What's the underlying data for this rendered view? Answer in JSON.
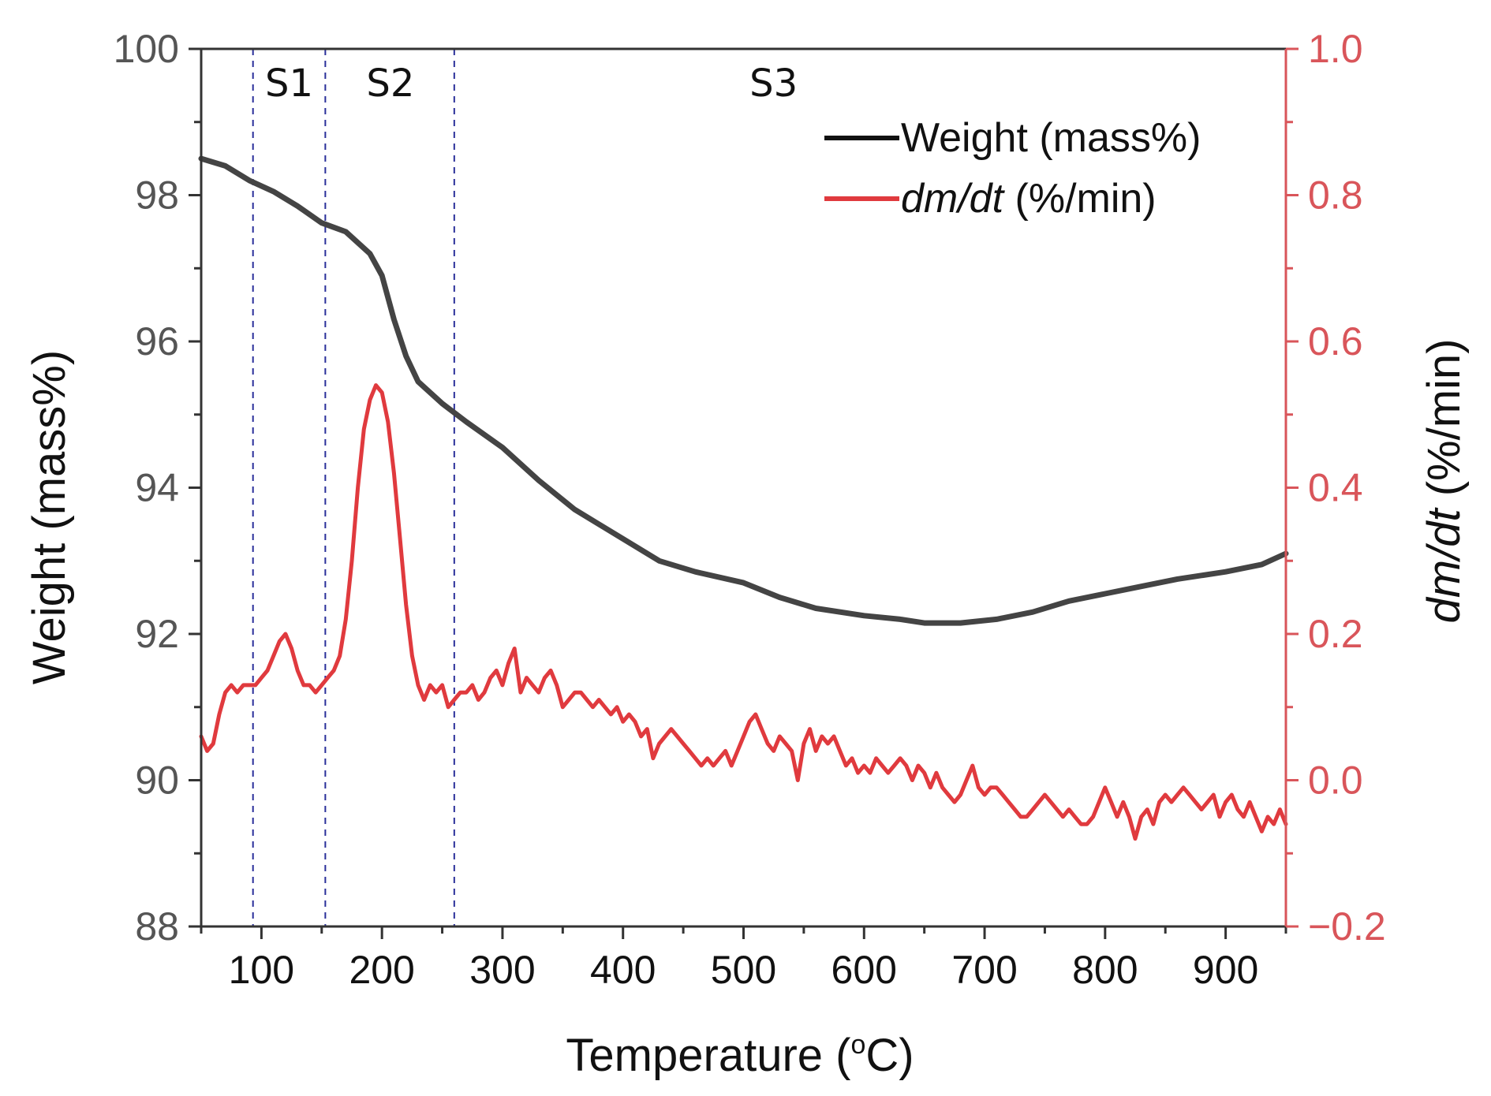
{
  "chart_data": {
    "type": "line",
    "xlabel": "Temperature (°C)",
    "ylabel_left": "Weight (mass%)",
    "ylabel_right_italic": "dm/dt",
    "ylabel_right_rest": " (%/min)",
    "xlim": [
      50,
      950
    ],
    "ylim_left": [
      88,
      100
    ],
    "ylim_right": [
      -0.2,
      1.0
    ],
    "x_ticks": [
      100,
      200,
      300,
      400,
      500,
      600,
      700,
      800,
      900
    ],
    "y_left_ticks": [
      88,
      90,
      92,
      94,
      96,
      98,
      100
    ],
    "y_right_ticks": [
      -0.2,
      0.0,
      0.2,
      0.4,
      0.6,
      0.8,
      1.0
    ],
    "x_tick_labels": [
      "100",
      "200",
      "300",
      "400",
      "500",
      "600",
      "700",
      "800",
      "900"
    ],
    "y_left_tick_labels": [
      "88",
      "90",
      "92",
      "94",
      "96",
      "98",
      "100"
    ],
    "y_right_tick_labels": [
      "−0.2",
      "0.0",
      "0.2",
      "0.4",
      "0.6",
      "0.8",
      "1.0"
    ],
    "stage_lines_x": [
      93,
      153,
      260
    ],
    "stages": [
      {
        "label": "S1",
        "x": 123
      },
      {
        "label": "S2",
        "x": 207
      },
      {
        "label": "S3",
        "x": 525
      }
    ],
    "legend": {
      "position": "top-right",
      "weight_label": "Weight (mass%)",
      "dmdt_label_italic": "dm/dt",
      "dmdt_label_rest": " (%/min)"
    },
    "series": [
      {
        "name": "Weight (mass%)",
        "axis": "left",
        "color": "#444444",
        "x": [
          50,
          70,
          90,
          110,
          130,
          150,
          170,
          190,
          200,
          210,
          220,
          230,
          250,
          270,
          300,
          330,
          360,
          400,
          430,
          460,
          500,
          530,
          560,
          600,
          630,
          650,
          680,
          710,
          740,
          770,
          800,
          830,
          860,
          900,
          930,
          950
        ],
        "y": [
          98.5,
          98.4,
          98.2,
          98.05,
          97.85,
          97.62,
          97.5,
          97.2,
          96.9,
          96.3,
          95.8,
          95.45,
          95.15,
          94.9,
          94.55,
          94.1,
          93.7,
          93.3,
          93.0,
          92.85,
          92.7,
          92.5,
          92.35,
          92.25,
          92.2,
          92.15,
          92.15,
          92.2,
          92.3,
          92.45,
          92.55,
          92.65,
          92.75,
          92.85,
          92.95,
          93.1
        ]
      },
      {
        "name": "dm/dt (%/min)",
        "axis": "right",
        "color": "#e03a3e",
        "x": [
          50,
          55,
          60,
          65,
          70,
          75,
          80,
          85,
          90,
          95,
          100,
          105,
          110,
          115,
          120,
          125,
          130,
          135,
          140,
          145,
          150,
          155,
          160,
          165,
          170,
          175,
          180,
          185,
          190,
          195,
          200,
          205,
          210,
          215,
          220,
          225,
          230,
          235,
          240,
          245,
          250,
          255,
          260,
          265,
          270,
          275,
          280,
          285,
          290,
          295,
          300,
          305,
          310,
          315,
          320,
          325,
          330,
          335,
          340,
          345,
          350,
          355,
          360,
          365,
          370,
          375,
          380,
          385,
          390,
          395,
          400,
          405,
          410,
          415,
          420,
          425,
          430,
          435,
          440,
          445,
          450,
          455,
          460,
          465,
          470,
          475,
          480,
          485,
          490,
          495,
          500,
          505,
          510,
          515,
          520,
          525,
          530,
          535,
          540,
          545,
          550,
          555,
          560,
          565,
          570,
          575,
          580,
          585,
          590,
          595,
          600,
          605,
          610,
          615,
          620,
          625,
          630,
          635,
          640,
          645,
          650,
          655,
          660,
          665,
          670,
          675,
          680,
          685,
          690,
          695,
          700,
          705,
          710,
          715,
          720,
          725,
          730,
          735,
          740,
          745,
          750,
          755,
          760,
          765,
          770,
          775,
          780,
          785,
          790,
          795,
          800,
          805,
          810,
          815,
          820,
          825,
          830,
          835,
          840,
          845,
          850,
          855,
          860,
          865,
          870,
          875,
          880,
          885,
          890,
          895,
          900,
          905,
          910,
          915,
          920,
          925,
          930,
          935,
          940,
          945,
          950
        ],
        "y": [
          0.06,
          0.04,
          0.05,
          0.09,
          0.12,
          0.13,
          0.12,
          0.13,
          0.13,
          0.13,
          0.14,
          0.15,
          0.17,
          0.19,
          0.2,
          0.18,
          0.15,
          0.13,
          0.13,
          0.12,
          0.13,
          0.14,
          0.15,
          0.17,
          0.22,
          0.3,
          0.4,
          0.48,
          0.52,
          0.54,
          0.53,
          0.49,
          0.42,
          0.33,
          0.24,
          0.17,
          0.13,
          0.11,
          0.13,
          0.12,
          0.13,
          0.1,
          0.11,
          0.12,
          0.12,
          0.13,
          0.11,
          0.12,
          0.14,
          0.15,
          0.13,
          0.16,
          0.18,
          0.12,
          0.14,
          0.13,
          0.12,
          0.14,
          0.15,
          0.13,
          0.1,
          0.11,
          0.12,
          0.12,
          0.11,
          0.1,
          0.11,
          0.1,
          0.09,
          0.1,
          0.08,
          0.09,
          0.08,
          0.06,
          0.07,
          0.03,
          0.05,
          0.06,
          0.07,
          0.06,
          0.05,
          0.04,
          0.03,
          0.02,
          0.03,
          0.02,
          0.03,
          0.04,
          0.02,
          0.04,
          0.06,
          0.08,
          0.09,
          0.07,
          0.05,
          0.04,
          0.06,
          0.05,
          0.04,
          0.0,
          0.05,
          0.07,
          0.04,
          0.06,
          0.05,
          0.06,
          0.04,
          0.02,
          0.03,
          0.01,
          0.02,
          0.01,
          0.03,
          0.02,
          0.01,
          0.02,
          0.03,
          0.02,
          0.0,
          0.02,
          0.01,
          -0.01,
          0.01,
          -0.01,
          -0.02,
          -0.03,
          -0.02,
          0.0,
          0.02,
          -0.01,
          -0.02,
          -0.01,
          -0.01,
          -0.02,
          -0.03,
          -0.04,
          -0.05,
          -0.05,
          -0.04,
          -0.03,
          -0.02,
          -0.03,
          -0.04,
          -0.05,
          -0.04,
          -0.05,
          -0.06,
          -0.06,
          -0.05,
          -0.03,
          -0.01,
          -0.03,
          -0.05,
          -0.03,
          -0.05,
          -0.08,
          -0.05,
          -0.04,
          -0.06,
          -0.03,
          -0.02,
          -0.03,
          -0.02,
          -0.01,
          -0.02,
          -0.03,
          -0.04,
          -0.03,
          -0.02,
          -0.05,
          -0.03,
          -0.02,
          -0.04,
          -0.05,
          -0.03,
          -0.05,
          -0.07,
          -0.05,
          -0.06,
          -0.04,
          -0.06
        ]
      }
    ]
  }
}
